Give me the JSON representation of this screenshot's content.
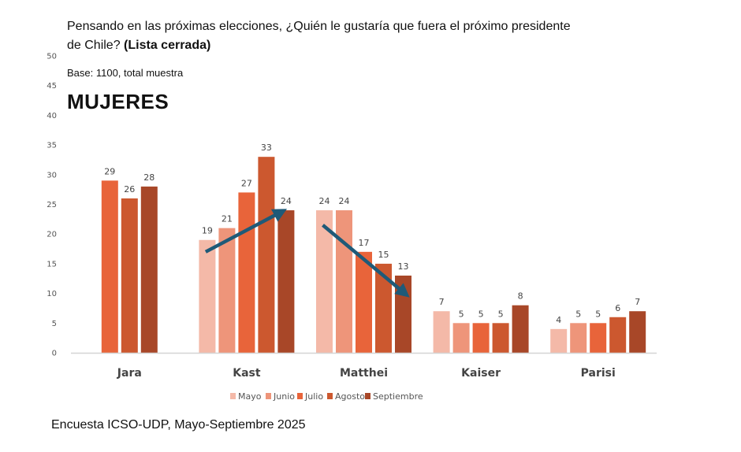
{
  "header": {
    "title_part1": "Pensando en las próximas elecciones, ¿Quién le gustaría que fuera el próximo presidente de Chile? ",
    "title_bold": "(Lista cerrada)",
    "base": "Base: 1100, total muestra",
    "segment": "MUJERES"
  },
  "footer": {
    "source": "Encuesta ICSO-UDP, Mayo-Septiembre 2025"
  },
  "chart_data": {
    "type": "bar",
    "title": "Pensando en las próximas elecciones, ¿Quién le gustaría que fuera el próximo presidente de Chile? (Lista cerrada)",
    "subtitle": "MUJERES",
    "xlabel": "",
    "ylabel": "",
    "ylim": [
      0,
      50
    ],
    "yticks": [
      0,
      5,
      10,
      15,
      20,
      25,
      30,
      35,
      40,
      45,
      50
    ],
    "grid": false,
    "legend_position": "bottom",
    "categories": [
      "Jara",
      "Kast",
      "Matthei",
      "Kaiser",
      "Parisi"
    ],
    "series": [
      {
        "name": "Mayo",
        "color": "#F4B9A8",
        "values": [
          null,
          19,
          24,
          7,
          4
        ]
      },
      {
        "name": "Junio",
        "color": "#EE957A",
        "values": [
          null,
          21,
          24,
          5,
          5
        ]
      },
      {
        "name": "Julio",
        "color": "#E8643A",
        "values": [
          29,
          27,
          17,
          5,
          5
        ]
      },
      {
        "name": "Agosto",
        "color": "#CC582F",
        "values": [
          26,
          33,
          15,
          5,
          6
        ]
      },
      {
        "name": "Septiembre",
        "color": "#A84728",
        "values": [
          28,
          24,
          13,
          8,
          7
        ]
      }
    ],
    "annotations": [
      {
        "type": "arrow",
        "category": "Kast",
        "from_series": "Mayo",
        "to_series": "Septiembre",
        "direction": "up",
        "color": "#1F5A78"
      },
      {
        "type": "arrow",
        "category": "Matthei",
        "from_series": "Mayo",
        "to_series": "Septiembre",
        "direction": "down",
        "color": "#1F5A78"
      }
    ]
  }
}
